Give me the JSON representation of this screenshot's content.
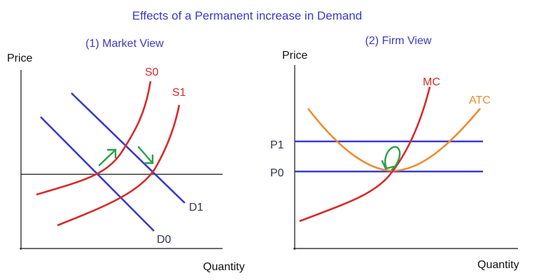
{
  "title": "Effects of a Permanent increase in Demand",
  "market": {
    "heading": "(1)  Market View",
    "y_axis_label": "Price",
    "x_axis_label": "Quantity",
    "labels": {
      "s0": "S0",
      "s1": "S1",
      "d0": "D0",
      "d1": "D1"
    }
  },
  "firm": {
    "heading": "(2) Firm View",
    "y_axis_label": "Price",
    "x_axis_label": "Quantity",
    "labels": {
      "mc": "MC",
      "atc": "ATC",
      "p1": "P1",
      "p0": "P0"
    }
  },
  "colors": {
    "supply": "#d62b2b",
    "demand": "#3a3ac8",
    "atc": "#f08a2e",
    "arrow": "#27a04a",
    "axis": "#111111"
  }
}
